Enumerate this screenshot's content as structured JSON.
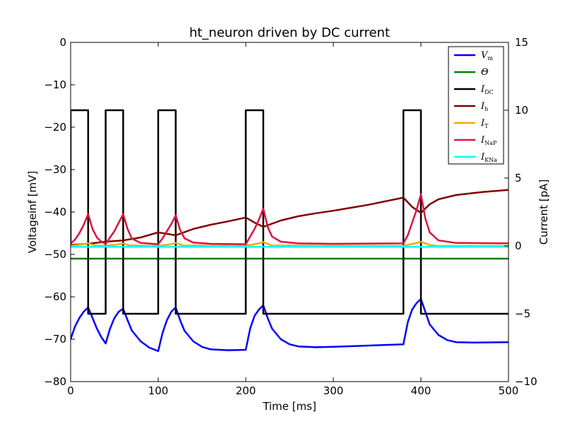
{
  "chart_data": {
    "type": "line",
    "title": "ht_neuron driven by DC current",
    "xlabel": "Time [ms]",
    "ylabel_left": "Voltageinf [mV]",
    "ylabel_right": "Current [pA]",
    "xlim": [
      0,
      500
    ],
    "ylim_left": [
      -80,
      0
    ],
    "ylim_right": [
      -10,
      15
    ],
    "grid": false,
    "legend_position": "top-right",
    "x_ticks": [
      "0",
      "100",
      "200",
      "300",
      "400",
      "500"
    ],
    "y_left_ticks": [
      "0",
      "−10",
      "−20",
      "−30",
      "−40",
      "−50",
      "−60",
      "−70",
      "−80"
    ],
    "y_right_ticks": [
      "15",
      "10",
      "5",
      "0",
      "−5",
      "−10"
    ],
    "series": [
      {
        "name": "V_m",
        "legend_main": "V",
        "legend_sub": "m",
        "axis": "left",
        "color": "#0000ff",
        "points": [
          [
            0,
            -70
          ],
          [
            5,
            -67
          ],
          [
            10,
            -65
          ],
          [
            15,
            -63.5
          ],
          [
            20,
            -62.5
          ],
          [
            25,
            -65
          ],
          [
            30,
            -67.5
          ],
          [
            35,
            -69.5
          ],
          [
            40,
            -71
          ],
          [
            45,
            -67.5
          ],
          [
            50,
            -65
          ],
          [
            55,
            -63.5
          ],
          [
            60,
            -62.8
          ],
          [
            65,
            -65.5
          ],
          [
            70,
            -68
          ],
          [
            80,
            -70.5
          ],
          [
            90,
            -72
          ],
          [
            100,
            -72.8
          ],
          [
            105,
            -68.5
          ],
          [
            110,
            -65.5
          ],
          [
            115,
            -63.5
          ],
          [
            120,
            -62.5
          ],
          [
            125,
            -65.5
          ],
          [
            130,
            -68
          ],
          [
            140,
            -70.5
          ],
          [
            150,
            -71.8
          ],
          [
            160,
            -72.4
          ],
          [
            180,
            -72.6
          ],
          [
            200,
            -72.5
          ],
          [
            205,
            -67.5
          ],
          [
            210,
            -64.5
          ],
          [
            215,
            -63
          ],
          [
            220,
            -62
          ],
          [
            225,
            -65
          ],
          [
            230,
            -67.5
          ],
          [
            240,
            -70
          ],
          [
            250,
            -71.2
          ],
          [
            260,
            -71.7
          ],
          [
            280,
            -71.9
          ],
          [
            300,
            -71.8
          ],
          [
            340,
            -71.5
          ],
          [
            380,
            -71.2
          ],
          [
            385,
            -66
          ],
          [
            390,
            -63
          ],
          [
            395,
            -61.5
          ],
          [
            400,
            -60.5
          ],
          [
            405,
            -63.5
          ],
          [
            410,
            -66.5
          ],
          [
            420,
            -69
          ],
          [
            430,
            -70.2
          ],
          [
            440,
            -70.7
          ],
          [
            460,
            -70.8
          ],
          [
            500,
            -70.7
          ]
        ]
      },
      {
        "name": "Θ",
        "legend_main": "Θ",
        "legend_sub": "",
        "axis": "left",
        "color": "#008000",
        "points": [
          [
            0,
            -51
          ],
          [
            500,
            -51
          ]
        ]
      },
      {
        "name": "I_DC",
        "legend_main": "I",
        "legend_sub": "DC",
        "axis": "right",
        "color": "#000000",
        "points": [
          [
            0,
            0
          ],
          [
            0,
            10
          ],
          [
            20,
            10
          ],
          [
            20,
            -5
          ],
          [
            40,
            -5
          ],
          [
            40,
            10
          ],
          [
            60,
            10
          ],
          [
            60,
            -5
          ],
          [
            100,
            -5
          ],
          [
            100,
            10
          ],
          [
            120,
            10
          ],
          [
            120,
            -5
          ],
          [
            200,
            -5
          ],
          [
            200,
            10
          ],
          [
            220,
            10
          ],
          [
            220,
            -5
          ],
          [
            380,
            -5
          ],
          [
            380,
            10
          ],
          [
            400,
            10
          ],
          [
            400,
            -5
          ],
          [
            500,
            -5
          ]
        ]
      },
      {
        "name": "I_h",
        "legend_main": "I",
        "legend_sub": "h",
        "axis": "left",
        "color": "#800000",
        "points": [
          [
            0,
            -47.8
          ],
          [
            20,
            -47.5
          ],
          [
            40,
            -47
          ],
          [
            60,
            -46.7
          ],
          [
            80,
            -46
          ],
          [
            100,
            -44.8
          ],
          [
            120,
            -45.5
          ],
          [
            140,
            -44
          ],
          [
            160,
            -43
          ],
          [
            180,
            -42.2
          ],
          [
            200,
            -41.3
          ],
          [
            210,
            -42.5
          ],
          [
            220,
            -43.5
          ],
          [
            240,
            -42
          ],
          [
            260,
            -41
          ],
          [
            280,
            -40.3
          ],
          [
            300,
            -39.7
          ],
          [
            340,
            -38.3
          ],
          [
            380,
            -36.6
          ],
          [
            390,
            -38.8
          ],
          [
            400,
            -40.2
          ],
          [
            410,
            -38.2
          ],
          [
            420,
            -37
          ],
          [
            440,
            -36
          ],
          [
            470,
            -35.3
          ],
          [
            500,
            -34.8
          ]
        ]
      },
      {
        "name": "I_T",
        "legend_main": "I",
        "legend_sub": "T",
        "axis": "left",
        "color": "#ffa500",
        "points": [
          [
            0,
            -48
          ],
          [
            15,
            -47.6
          ],
          [
            20,
            -47.4
          ],
          [
            28,
            -47.9
          ],
          [
            40,
            -48
          ],
          [
            55,
            -47.6
          ],
          [
            60,
            -47.4
          ],
          [
            68,
            -47.9
          ],
          [
            100,
            -48
          ],
          [
            115,
            -47.6
          ],
          [
            120,
            -47.3
          ],
          [
            128,
            -47.9
          ],
          [
            200,
            -48
          ],
          [
            215,
            -47.4
          ],
          [
            220,
            -47.1
          ],
          [
            230,
            -47.9
          ],
          [
            380,
            -48
          ],
          [
            395,
            -47.3
          ],
          [
            400,
            -47
          ],
          [
            410,
            -47.8
          ],
          [
            420,
            -48
          ],
          [
            500,
            -48
          ]
        ]
      },
      {
        "name": "I_NaP",
        "legend_main": "I",
        "legend_sub": "NaP",
        "axis": "left",
        "color": "#dc143c",
        "points": [
          [
            0,
            -47.5
          ],
          [
            5,
            -46.5
          ],
          [
            10,
            -45
          ],
          [
            15,
            -43
          ],
          [
            20,
            -40.5
          ],
          [
            25,
            -44
          ],
          [
            30,
            -46
          ],
          [
            35,
            -47
          ],
          [
            40,
            -47.5
          ],
          [
            45,
            -46
          ],
          [
            50,
            -44.5
          ],
          [
            55,
            -42.5
          ],
          [
            60,
            -40.5
          ],
          [
            65,
            -44
          ],
          [
            70,
            -46.3
          ],
          [
            80,
            -47.3
          ],
          [
            100,
            -47.6
          ],
          [
            105,
            -46.2
          ],
          [
            110,
            -44.5
          ],
          [
            115,
            -42.8
          ],
          [
            120,
            -40.8
          ],
          [
            125,
            -44.2
          ],
          [
            130,
            -46.2
          ],
          [
            140,
            -47.2
          ],
          [
            160,
            -47.5
          ],
          [
            200,
            -47.6
          ],
          [
            205,
            -45.8
          ],
          [
            210,
            -44
          ],
          [
            215,
            -41.8
          ],
          [
            220,
            -39.2
          ],
          [
            225,
            -43.5
          ],
          [
            230,
            -45.8
          ],
          [
            240,
            -47
          ],
          [
            260,
            -47.4
          ],
          [
            300,
            -47.5
          ],
          [
            380,
            -47.4
          ],
          [
            385,
            -45.5
          ],
          [
            390,
            -42.5
          ],
          [
            395,
            -39.5
          ],
          [
            400,
            -35.8
          ],
          [
            405,
            -41.5
          ],
          [
            410,
            -44.8
          ],
          [
            420,
            -46.7
          ],
          [
            440,
            -47.3
          ],
          [
            500,
            -47.4
          ]
        ]
      },
      {
        "name": "I_KNa",
        "legend_main": "I",
        "legend_sub": "KNa",
        "axis": "left",
        "color": "#00ffff",
        "points": [
          [
            0,
            -48.2
          ],
          [
            500,
            -48.2
          ]
        ]
      }
    ]
  }
}
